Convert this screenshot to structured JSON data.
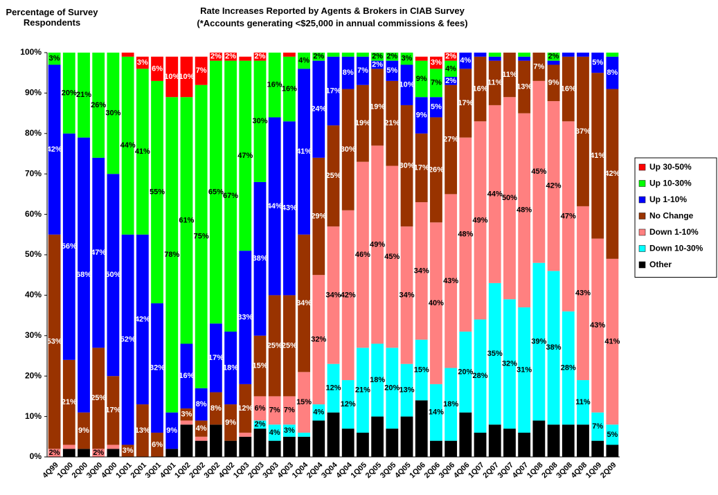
{
  "chart_data": {
    "type": "stacked_bar",
    "title": "Rate Increases Reported by Agents & Brokers in CIAB Survey",
    "subtitle": "(*Accounts generating <$25,000 in annual commissions & fees)",
    "y_label": "Percentage of Survey Respondents",
    "categories": [
      "4Q99",
      "1Q00",
      "2Q00",
      "3Q00",
      "4Q00",
      "1Q01",
      "2Q01",
      "3Q01",
      "4Q01",
      "1Q02",
      "2Q02",
      "3Q02",
      "4Q02",
      "1Q03",
      "2Q03",
      "3Q03",
      "4Q03",
      "1Q04",
      "2Q04",
      "3Q04",
      "4Q04",
      "1Q05",
      "2Q05",
      "3Q05",
      "4Q05",
      "1Q06",
      "2Q06",
      "3Q06",
      "4Q06",
      "1Q07",
      "2Q07",
      "3Q07",
      "4Q07",
      "1Q08",
      "2Q08",
      "3Q08",
      "4Q08",
      "1Q09",
      "2Q09"
    ],
    "ylim": [
      0,
      100
    ],
    "yticks": [
      {
        "value": 0,
        "label": "0%"
      },
      {
        "value": 10,
        "label": "10%"
      },
      {
        "value": 20,
        "label": "20%"
      },
      {
        "value": 30,
        "label": "30%"
      },
      {
        "value": 40,
        "label": "40%"
      },
      {
        "value": 50,
        "label": "50%"
      },
      {
        "value": 60,
        "label": "60%"
      },
      {
        "value": 70,
        "label": "70%"
      },
      {
        "value": 80,
        "label": "80%"
      },
      {
        "value": 90,
        "label": "90%"
      },
      {
        "value": 100,
        "label": "100%"
      }
    ],
    "legend": "right",
    "series": [
      {
        "name": "Other",
        "color": "#000000",
        "values": [
          0,
          2,
          2,
          0,
          2,
          0,
          0,
          0,
          2,
          8,
          4,
          8,
          4,
          5,
          7,
          4,
          5,
          5,
          9,
          11,
          7,
          6,
          10,
          7,
          10,
          14,
          4,
          4,
          11,
          6,
          8,
          7,
          6,
          9,
          8,
          8,
          8,
          4,
          3
        ]
      },
      {
        "name": "Down 10-30%",
        "color": "#00ffff",
        "values": [
          0,
          0,
          0,
          0,
          0,
          0,
          0,
          0,
          0,
          0,
          0,
          0,
          0,
          0,
          2,
          4,
          3,
          1,
          4,
          12,
          12,
          21,
          18,
          20,
          13,
          15,
          14,
          18,
          20,
          28,
          35,
          32,
          31,
          39,
          38,
          28,
          11,
          7,
          5
        ],
        "value_labels": [
          null,
          null,
          null,
          null,
          null,
          null,
          null,
          null,
          null,
          null,
          null,
          null,
          null,
          null,
          "2%",
          "4%",
          "3%",
          null,
          "4%",
          "12%",
          "12%",
          "21%",
          "18%",
          "20%",
          "13%",
          "15%",
          "14%",
          "18%",
          "20%",
          "28%",
          "35%",
          "32%",
          "31%",
          "39%",
          "38%",
          "28%",
          "11%",
          "7%",
          "5%"
        ]
      },
      {
        "name": "Down 1-10%",
        "color": "#ff8080",
        "values": [
          2,
          1,
          0,
          2,
          1,
          0,
          0,
          0,
          0,
          1,
          1,
          0,
          0,
          1,
          6,
          7,
          7,
          15,
          32,
          34,
          42,
          46,
          49,
          45,
          34,
          34,
          40,
          43,
          48,
          49,
          44,
          50,
          48,
          45,
          42,
          47,
          43,
          43,
          41
        ],
        "value_labels": [
          "2%",
          null,
          null,
          "2%",
          null,
          null,
          null,
          null,
          null,
          null,
          null,
          null,
          null,
          null,
          "6%",
          "7%",
          "7%",
          "15%",
          "32%",
          "34%",
          "42%",
          "46%",
          "49%",
          "45%",
          "34%",
          "34%",
          "40%",
          "43%",
          "48%",
          "49%",
          "44%",
          "50%",
          "48%",
          "45%",
          "42%",
          "47%",
          "43%",
          "43%",
          "41%"
        ]
      },
      {
        "name": "No Change",
        "color": "#993300",
        "values": [
          53,
          21,
          9,
          25,
          17,
          3,
          13,
          6,
          0,
          3,
          4,
          8,
          9,
          12,
          15,
          25,
          25,
          34,
          29,
          25,
          30,
          19,
          19,
          21,
          30,
          17,
          26,
          27,
          17,
          16,
          11,
          11,
          13,
          7,
          9,
          16,
          37,
          41,
          42
        ],
        "value_labels": [
          "53%",
          "21%",
          "9%",
          "25%",
          "17%",
          "3%",
          "13%",
          "6%",
          null,
          "3%",
          "4%",
          "8%",
          "9%",
          "12%",
          "15%",
          "25%",
          "25%",
          "34%",
          "29%",
          "25%",
          "30%",
          "19%",
          "19%",
          "21%",
          "30%",
          "17%",
          "26%",
          "27%",
          "17%",
          "16%",
          "11%",
          "11%",
          "13%",
          "7%",
          "9%",
          "16%",
          "37%",
          "41%",
          "42%"
        ]
      },
      {
        "name": "Up 1-10%",
        "color": "#0000ff",
        "values": [
          42,
          56,
          68,
          47,
          50,
          52,
          42,
          32,
          9,
          16,
          8,
          17,
          18,
          33,
          38,
          44,
          43,
          41,
          24,
          17,
          8,
          7,
          2,
          5,
          10,
          9,
          5,
          2,
          4,
          1,
          1,
          0,
          1,
          0,
          1,
          1,
          1,
          5,
          8
        ],
        "value_labels": [
          "42%",
          "56%",
          "68%",
          "47%",
          "50%",
          "52%",
          "42%",
          "32%",
          "9%",
          "16%",
          "8%",
          "17%",
          "18%",
          "33%",
          "38%",
          "44%",
          "43%",
          "41%",
          "24%",
          "17%",
          "8%",
          "7%",
          "2%",
          "5%",
          "10%",
          "9%",
          "5%",
          "2%",
          "4%",
          null,
          null,
          null,
          null,
          null,
          null,
          null,
          null,
          "5%",
          "8%"
        ]
      },
      {
        "name": "Up 10-30%",
        "color": "#00ff00",
        "values": [
          3,
          20,
          21,
          26,
          30,
          44,
          41,
          55,
          78,
          61,
          75,
          65,
          67,
          47,
          30,
          16,
          16,
          4,
          2,
          1,
          1,
          1,
          2,
          2,
          3,
          9,
          7,
          4,
          0,
          0,
          1,
          0,
          1,
          0,
          2,
          0,
          0,
          0,
          1
        ],
        "value_labels": [
          "3%",
          "20%",
          "21%",
          "26%",
          "30%",
          "44%",
          "41%",
          "55%",
          "78%",
          "61%",
          "75%",
          "65%",
          "67%",
          "47%",
          "30%",
          "16%",
          "16%",
          "4%",
          "2%",
          null,
          null,
          null,
          "2%",
          "2%",
          "3%",
          "9%",
          "7%",
          "4%",
          null,
          null,
          null,
          null,
          null,
          null,
          "2%",
          null,
          null,
          null,
          null
        ]
      },
      {
        "name": "Up 30-50%",
        "color": "#ff0000",
        "values": [
          0,
          0,
          0,
          0,
          0,
          1,
          3,
          6,
          10,
          10,
          7,
          2,
          2,
          1,
          2,
          0,
          1,
          0,
          0,
          0,
          0,
          0,
          0,
          0,
          0,
          1,
          3,
          2,
          0,
          0,
          0,
          0,
          0,
          0,
          0,
          0,
          0,
          0,
          0
        ],
        "value_labels": [
          null,
          null,
          null,
          null,
          null,
          null,
          "3%",
          "6%",
          "10%",
          "10%",
          "7%",
          "2%",
          "2%",
          null,
          "2%",
          null,
          null,
          null,
          null,
          null,
          null,
          null,
          null,
          null,
          null,
          null,
          "3%",
          "2%",
          null,
          null,
          null,
          null,
          null,
          null,
          null,
          null,
          null,
          null,
          null
        ]
      }
    ]
  }
}
